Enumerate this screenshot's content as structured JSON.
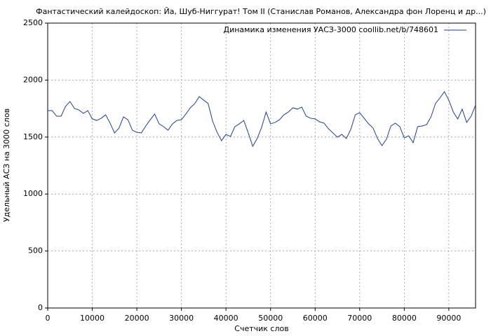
{
  "chart_data": {
    "type": "line",
    "title": "Фантастический калейдоскоп: Йа, Шуб-Ниггурат! Том II (Станислав Романов, Александра фон Лоренц и др...)",
    "xlabel": "Счетчик слов",
    "ylabel": "Удельный АСЗ на 3000 слов",
    "x": [
      0,
      1000,
      2000,
      3000,
      4000,
      5000,
      6000,
      7000,
      8000,
      9000,
      10000,
      11000,
      12000,
      13000,
      14000,
      15000,
      16000,
      17000,
      18000,
      19000,
      20000,
      21000,
      22000,
      23000,
      24000,
      25000,
      26000,
      27000,
      28000,
      29000,
      30000,
      31000,
      32000,
      33000,
      34000,
      35000,
      36000,
      37000,
      38000,
      39000,
      40000,
      41000,
      42000,
      43000,
      44000,
      45000,
      46000,
      47000,
      48000,
      49000,
      50000,
      51000,
      52000,
      53000,
      54000,
      55000,
      56000,
      57000,
      58000,
      59000,
      60000,
      61000,
      62000,
      63000,
      64000,
      65000,
      66000,
      67000,
      68000,
      69000,
      70000,
      71000,
      72000,
      73000,
      74000,
      75000,
      76000,
      77000,
      78000,
      79000,
      80000,
      81000,
      82000,
      83000,
      84000,
      85000,
      86000,
      87000,
      88000,
      89000,
      90000,
      91000,
      92000,
      93000,
      94000,
      95000,
      96000
    ],
    "series": [
      {
        "name": "Динамика изменения УАСЗ-3000 coollib.net/b/748601",
        "color": "#1f3f99",
        "values": [
          1732,
          1732,
          1683,
          1683,
          1769,
          1812,
          1751,
          1738,
          1708,
          1732,
          1659,
          1646,
          1665,
          1695,
          1622,
          1536,
          1579,
          1677,
          1652,
          1560,
          1542,
          1536,
          1597,
          1652,
          1702,
          1616,
          1591,
          1560,
          1616,
          1646,
          1652,
          1702,
          1757,
          1794,
          1855,
          1824,
          1794,
          1640,
          1542,
          1468,
          1523,
          1505,
          1591,
          1616,
          1646,
          1536,
          1419,
          1487,
          1585,
          1720,
          1616,
          1628,
          1652,
          1695,
          1720,
          1757,
          1745,
          1763,
          1683,
          1665,
          1659,
          1634,
          1622,
          1573,
          1536,
          1499,
          1523,
          1487,
          1567,
          1695,
          1714,
          1665,
          1616,
          1579,
          1487,
          1425,
          1481,
          1597,
          1622,
          1591,
          1493,
          1511,
          1450,
          1591,
          1597,
          1609,
          1677,
          1794,
          1843,
          1898,
          1824,
          1720,
          1659,
          1745,
          1628,
          1683,
          1781
        ]
      }
    ],
    "xlim": [
      0,
      96000
    ],
    "ylim": [
      0,
      2500
    ],
    "xticks": [
      0,
      10000,
      20000,
      30000,
      40000,
      50000,
      60000,
      70000,
      80000,
      90000
    ],
    "yticks": [
      0,
      500,
      1000,
      1500,
      2000,
      2500
    ],
    "grid": true,
    "legend": "upper right"
  }
}
